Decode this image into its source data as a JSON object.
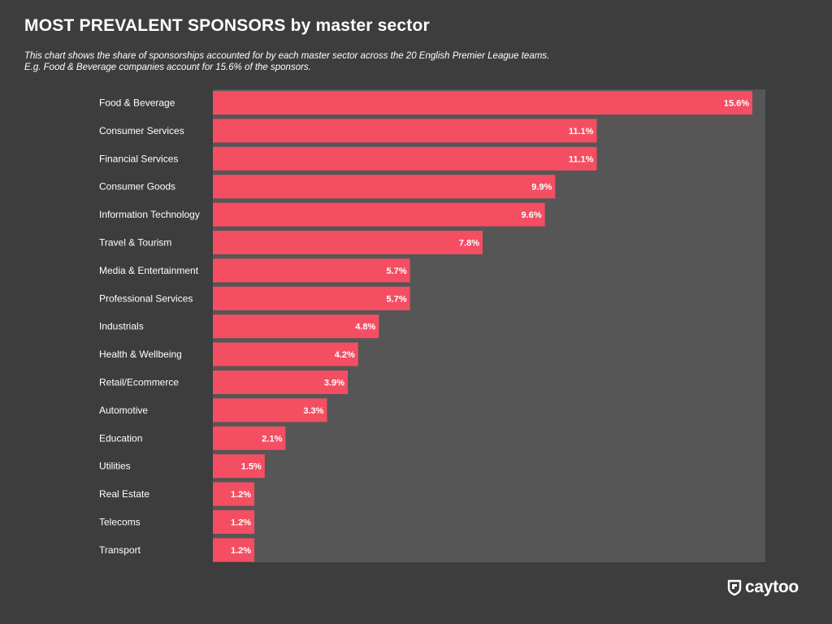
{
  "header": {
    "title": "MOST PREVALENT SPONSORS by master sector",
    "subtitle_line1": "This chart shows the share of sponsorships accounted for by each master sector across the 20 English Premier League teams.",
    "subtitle_line2": "E.g. Food & Beverage companies account for 15.6% of the sponsors."
  },
  "brand": {
    "name": "caytoo"
  },
  "colors": {
    "background": "#3d3d3d",
    "plot_background": "#565656",
    "bar": "#f44e62",
    "text": "#ffffff"
  },
  "chart_data": {
    "type": "bar",
    "orientation": "horizontal",
    "categories": [
      "Food & Beverage",
      "Consumer Services",
      "Financial Services",
      "Consumer Goods",
      "Information Technology",
      "Travel & Tourism",
      "Media & Entertainment",
      "Professional Services",
      "Industrials",
      "Health & Wellbeing",
      "Retail/Ecommerce",
      "Automotive",
      "Education",
      "Utilities",
      "Real Estate",
      "Telecoms",
      "Transport"
    ],
    "values": [
      15.6,
      11.1,
      11.1,
      9.9,
      9.6,
      7.8,
      5.7,
      5.7,
      4.8,
      4.2,
      3.9,
      3.3,
      2.1,
      1.5,
      1.2,
      1.2,
      1.2
    ],
    "value_labels": [
      "15.6%",
      "11.1%",
      "11.1%",
      "9.9%",
      "9.6%",
      "7.8%",
      "5.7%",
      "5.7%",
      "4.8%",
      "4.2%",
      "3.9%",
      "3.3%",
      "2.1%",
      "1.5%",
      "1.2%",
      "1.2%",
      "1.2%"
    ],
    "title": "MOST PREVALENT SPONSORS by master sector",
    "xlabel": "",
    "ylabel": "",
    "xlim": [
      0,
      16
    ],
    "grid": false,
    "legend": "none"
  }
}
